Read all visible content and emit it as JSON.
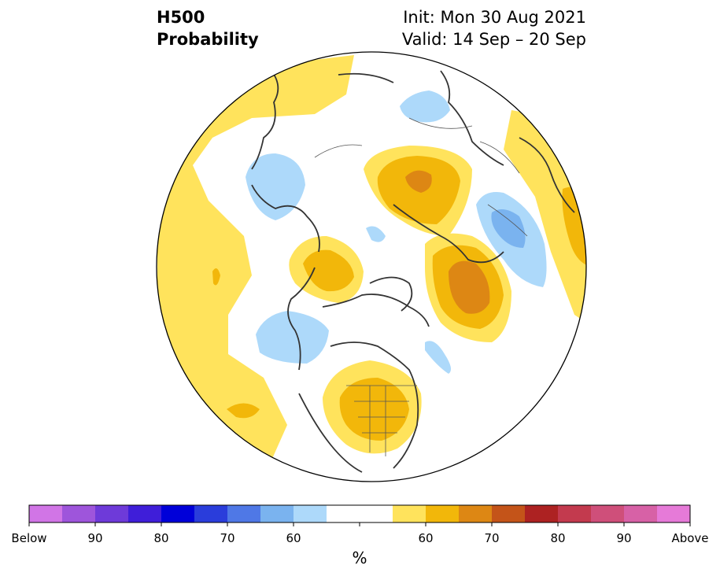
{
  "title": {
    "left_line1": "H500",
    "left_line2": "Probability",
    "init": "Init: Mon 30 Aug 2021",
    "valid": "Valid: 14 Sep – 20 Sep"
  },
  "colorbar": {
    "unit": "%",
    "colors": [
      "#d175e6",
      "#9e55db",
      "#6e3ad9",
      "#3f1ed9",
      "#0000d9",
      "#2a3ddb",
      "#4f78e6",
      "#7ab3ef",
      "#add9fa",
      "#ffffff",
      "#ffffff",
      "#ffe35c",
      "#f2b70a",
      "#dd8714",
      "#c45419",
      "#ad2222",
      "#c33a4e",
      "#cf4f7a",
      "#d761a6",
      "#e67ad8"
    ],
    "tick_labels": [
      "Below",
      "90",
      "80",
      "70",
      "60",
      "60",
      "70",
      "80",
      "90",
      "Above"
    ]
  },
  "colors": {
    "yellow": "#ffe35c",
    "gold": "#f2b70a",
    "orange": "#dd8714",
    "light_blue": "#add9fa",
    "mid_blue": "#7ab3ef",
    "border": "#333333"
  }
}
